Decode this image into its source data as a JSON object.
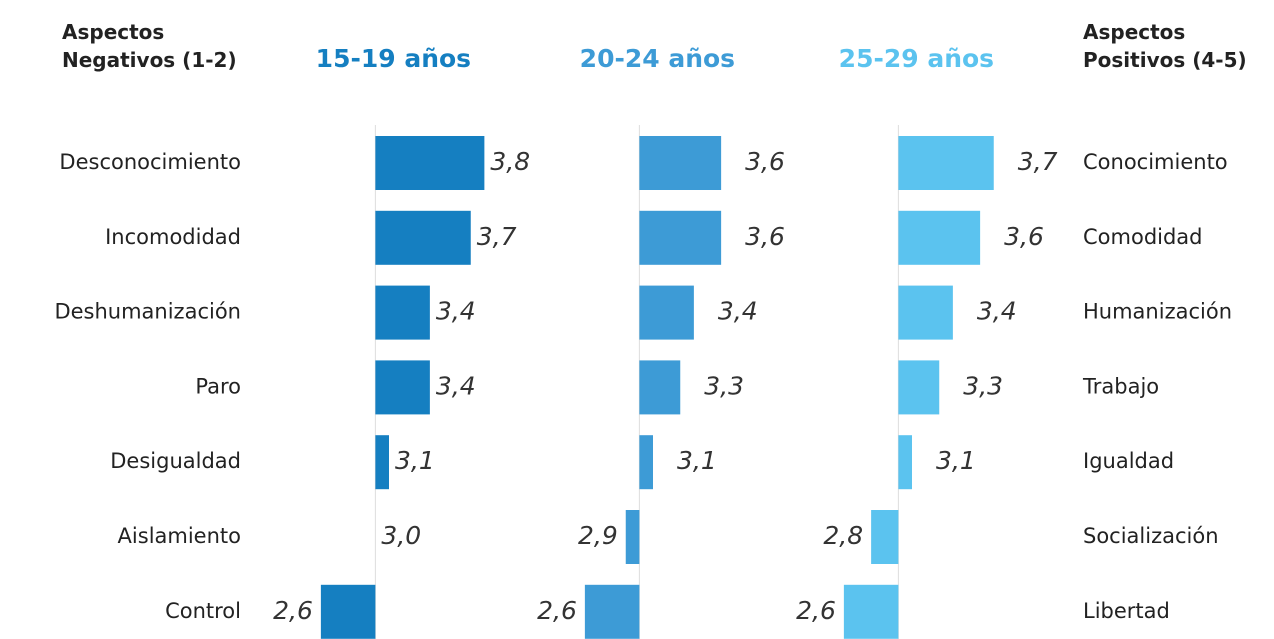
{
  "chart_data": {
    "type": "bar",
    "orientation": "horizontal",
    "left_header": "Aspectos Negativos (1-2)",
    "right_header": "Aspectos Positivos (4-5)",
    "categories": [
      "Desconocimiento",
      "Incomodidad",
      "Deshumanización",
      "Paro",
      "Desigualdad",
      "Aislamiento",
      "Control"
    ],
    "categories_right": [
      "Conocimiento",
      "Comodidad",
      "Humanización",
      "Trabajo",
      "Igualdad",
      "Socialización",
      "Libertad"
    ],
    "baseline": 3,
    "xlim": [
      2.3,
      3.9
    ],
    "series": [
      {
        "name": "15-19 años",
        "color": "#157fc1",
        "values": [
          3.8,
          3.7,
          3.4,
          3.4,
          3.1,
          3.0,
          2.6
        ],
        "value_labels": [
          "3,8",
          "3,7",
          "3,4",
          "3,4",
          "3,1",
          "3,0",
          "2,6"
        ]
      },
      {
        "name": "20-24 años",
        "color": "#3d9bd6",
        "values": [
          3.6,
          3.6,
          3.4,
          3.3,
          3.1,
          2.9,
          2.6
        ],
        "value_labels": [
          "3,6",
          "3,6",
          "3,4",
          "3,3",
          "3,1",
          "2,9",
          "2,6"
        ]
      },
      {
        "name": "25-29 años",
        "color": "#5bc3ef",
        "values": [
          3.7,
          3.6,
          3.4,
          3.3,
          3.1,
          2.8,
          2.6
        ],
        "value_labels": [
          "3,7",
          "3,6",
          "3,4",
          "3,3",
          "3,1",
          "2,8",
          "2,6"
        ]
      }
    ]
  }
}
